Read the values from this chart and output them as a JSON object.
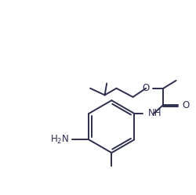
{
  "bg_color": "#ffffff",
  "line_color": "#2d2d4e",
  "line_width": 1.4,
  "font_size": 8.5,
  "figsize": [
    2.5,
    2.49
  ],
  "dpi": 100,
  "xlim": [
    0,
    10
  ],
  "ylim": [
    0,
    10
  ]
}
